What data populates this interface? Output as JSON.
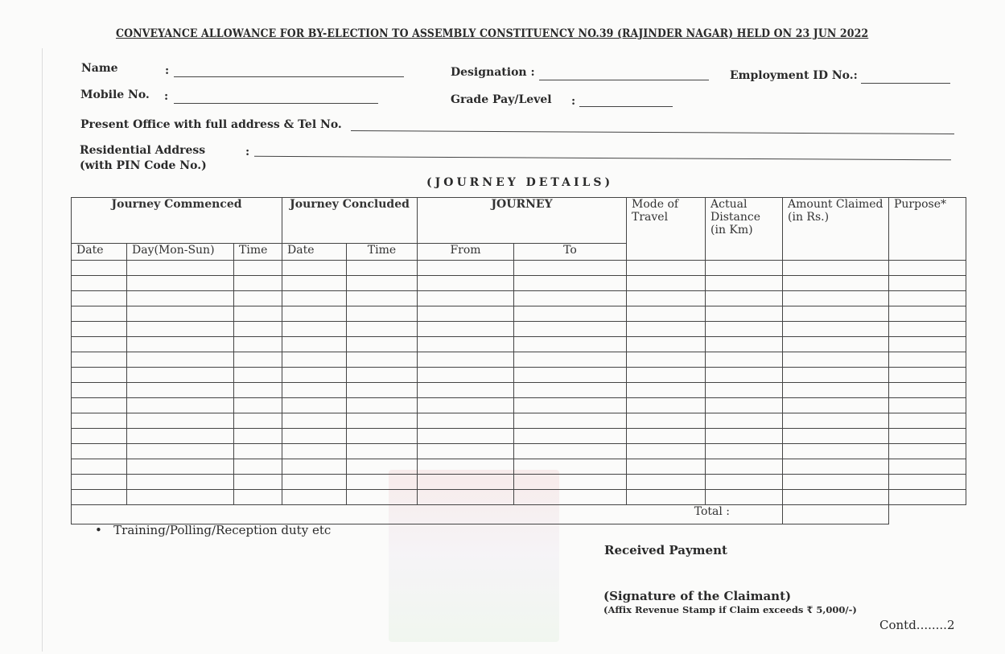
{
  "title": "CONVEYANCE ALLOWANCE FOR BY-ELECTION TO ASSEMBLY CONSTITUENCY NO.39 (RAJINDER NAGAR) HELD ON 23 JUN 2022",
  "fields": {
    "name": "Name",
    "designation": "Designation :",
    "employment_id": "Employment ID No.:",
    "mobile": "Mobile No.",
    "grade_pay": "Grade Pay/Level",
    "present_office": "Present Office with full address & Tel No.",
    "residential": "Residential Address",
    "residential_sub": "(with PIN Code No.)",
    "colon": ":"
  },
  "section_title": "(JOURNEY DETAILS)",
  "table": {
    "groups": {
      "commenced": "Journey Commenced",
      "concluded": "Journey Concluded",
      "journey": "JOURNEY",
      "mode": "Mode of Travel",
      "distance": "Actual Distance (in Km)",
      "amount": "Amount Claimed (in Rs.)",
      "purpose": "Purpose*"
    },
    "sub": {
      "date1": "Date",
      "day": "Day(Mon-Sun)",
      "time1": "Time",
      "date2": "Date",
      "time2": "Time",
      "from": "From",
      "to": "To"
    },
    "total": "Total :"
  },
  "footnote": "Training/Polling/Reception duty etc",
  "received": "Received Payment",
  "signature": "(Signature of the Claimant)",
  "affix": "(Affix Revenue Stamp if Claim exceeds ₹ 5,000/-)",
  "contd": "Contd........2"
}
